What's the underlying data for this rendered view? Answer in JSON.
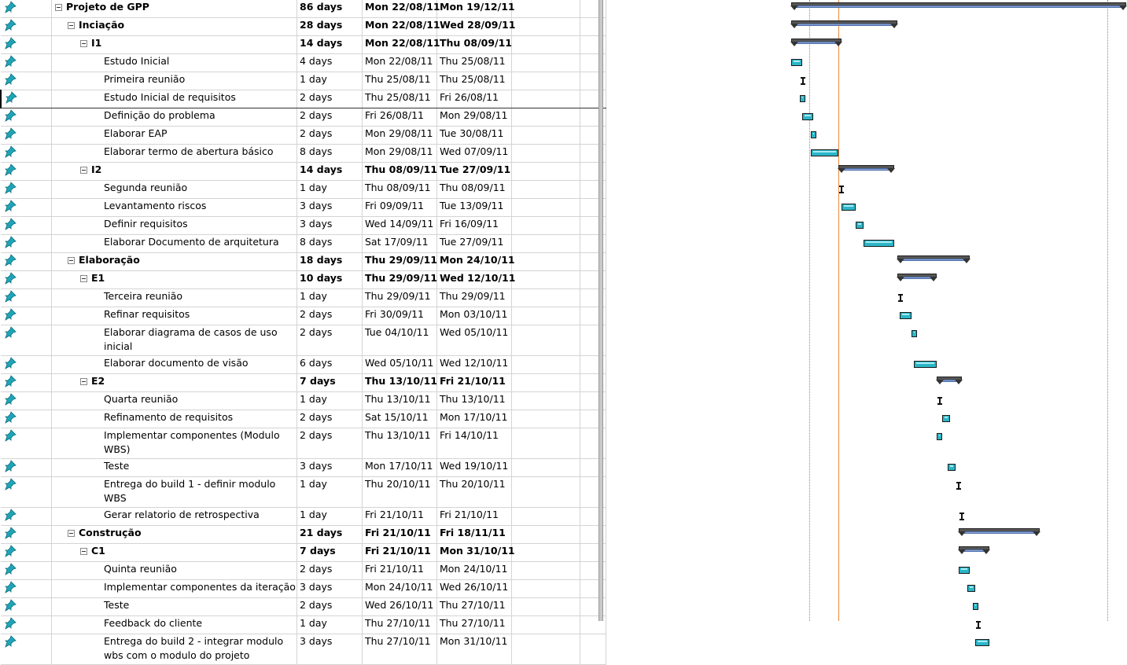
{
  "tasks": [
    {
      "name": "Projeto de GPP",
      "duration": "86 days",
      "start": "Mon 22/08/11",
      "finish": "Mon 19/12/11",
      "level": 0,
      "summary": true
    },
    {
      "name": "Inciação",
      "duration": "28 days",
      "start": "Mon 22/08/11",
      "finish": "Wed 28/09/11",
      "level": 1,
      "summary": true
    },
    {
      "name": "I1",
      "duration": "14 days",
      "start": "Mon 22/08/11",
      "finish": "Thu 08/09/11",
      "level": 2,
      "summary": true
    },
    {
      "name": "Estudo Inicial",
      "duration": "4 days",
      "start": "Mon 22/08/11",
      "finish": "Thu 25/08/11",
      "level": 3,
      "summary": false
    },
    {
      "name": "Primeira reunião",
      "duration": "1 day",
      "start": "Thu 25/08/11",
      "finish": "Thu 25/08/11",
      "level": 3,
      "summary": false
    },
    {
      "name": "Estudo Inicial de requisitos",
      "duration": "2 days",
      "start": "Thu 25/08/11",
      "finish": "Fri 26/08/11",
      "level": 3,
      "summary": false,
      "selected": true
    },
    {
      "name": "Definição do problema",
      "duration": "2 days",
      "start": "Fri 26/08/11",
      "finish": "Mon 29/08/11",
      "level": 3,
      "summary": false
    },
    {
      "name": "Elaborar EAP",
      "duration": "2 days",
      "start": "Mon 29/08/11",
      "finish": "Tue 30/08/11",
      "level": 3,
      "summary": false
    },
    {
      "name": "Elaborar termo de abertura básico",
      "duration": "8 days",
      "start": "Mon 29/08/11",
      "finish": "Wed 07/09/11",
      "level": 3,
      "summary": false
    },
    {
      "name": "I2",
      "duration": "14 days",
      "start": "Thu 08/09/11",
      "finish": "Tue 27/09/11",
      "level": 2,
      "summary": true
    },
    {
      "name": "Segunda reunião",
      "duration": "1 day",
      "start": "Thu 08/09/11",
      "finish": "Thu 08/09/11",
      "level": 3,
      "summary": false
    },
    {
      "name": "Levantamento riscos",
      "duration": "3 days",
      "start": "Fri 09/09/11",
      "finish": "Tue 13/09/11",
      "level": 3,
      "summary": false
    },
    {
      "name": "Definir requisitos",
      "duration": "3 days",
      "start": "Wed 14/09/11",
      "finish": "Fri 16/09/11",
      "level": 3,
      "summary": false
    },
    {
      "name": "Elaborar Documento de arquitetura",
      "duration": "8 days",
      "start": "Sat 17/09/11",
      "finish": "Tue 27/09/11",
      "level": 3,
      "summary": false
    },
    {
      "name": "Elaboração",
      "duration": "18 days",
      "start": "Thu 29/09/11",
      "finish": "Mon 24/10/11",
      "level": 1,
      "summary": true
    },
    {
      "name": "E1",
      "duration": "10 days",
      "start": "Thu 29/09/11",
      "finish": "Wed 12/10/11",
      "level": 2,
      "summary": true
    },
    {
      "name": "Terceira reunião",
      "duration": "1 day",
      "start": "Thu 29/09/11",
      "finish": "Thu 29/09/11",
      "level": 3,
      "summary": false
    },
    {
      "name": "Refinar requisitos",
      "duration": "2 days",
      "start": "Fri 30/09/11",
      "finish": "Mon 03/10/11",
      "level": 3,
      "summary": false
    },
    {
      "name": "Elaborar diagrama de casos de uso inicial",
      "duration": "2 days",
      "start": "Tue 04/10/11",
      "finish": "Wed 05/10/11",
      "level": 3,
      "summary": false,
      "tall": true
    },
    {
      "name": "Elaborar documento de visão",
      "duration": "6 days",
      "start": "Wed 05/10/11",
      "finish": "Wed 12/10/11",
      "level": 3,
      "summary": false
    },
    {
      "name": "E2",
      "duration": "7 days",
      "start": "Thu 13/10/11",
      "finish": "Fri 21/10/11",
      "level": 2,
      "summary": true
    },
    {
      "name": "Quarta reunião",
      "duration": "1 day",
      "start": "Thu 13/10/11",
      "finish": "Thu 13/10/11",
      "level": 3,
      "summary": false
    },
    {
      "name": "Refinamento de requisitos",
      "duration": "2 days",
      "start": "Sat 15/10/11",
      "finish": "Mon 17/10/11",
      "level": 3,
      "summary": false
    },
    {
      "name": "Implementar componentes (Modulo WBS)",
      "duration": "2 days",
      "start": "Thu 13/10/11",
      "finish": "Fri 14/10/11",
      "level": 3,
      "summary": false,
      "tall": true
    },
    {
      "name": "Teste",
      "duration": "3 days",
      "start": "Mon 17/10/11",
      "finish": "Wed 19/10/11",
      "level": 3,
      "summary": false
    },
    {
      "name": "Entrega do build 1 - definir modulo WBS",
      "duration": "1 day",
      "start": "Thu 20/10/11",
      "finish": "Thu 20/10/11",
      "level": 3,
      "summary": false,
      "tall": true
    },
    {
      "name": "Gerar relatorio de retrospectiva",
      "duration": "1 day",
      "start": "Fri 21/10/11",
      "finish": "Fri 21/10/11",
      "level": 3,
      "summary": false
    },
    {
      "name": "Construção",
      "duration": "21 days",
      "start": "Fri 21/10/11",
      "finish": "Fri 18/11/11",
      "level": 1,
      "summary": true
    },
    {
      "name": "C1",
      "duration": "7 days",
      "start": "Fri 21/10/11",
      "finish": "Mon 31/10/11",
      "level": 2,
      "summary": true
    },
    {
      "name": "Quinta reunião",
      "duration": "2 days",
      "start": "Fri 21/10/11",
      "finish": "Mon 24/10/11",
      "level": 3,
      "summary": false
    },
    {
      "name": "Implementar componentes da iteração",
      "duration": "3 days",
      "start": "Mon 24/10/11",
      "finish": "Wed 26/10/11",
      "level": 3,
      "summary": false
    },
    {
      "name": "Teste",
      "duration": "2 days",
      "start": "Wed 26/10/11",
      "finish": "Thu 27/10/11",
      "level": 3,
      "summary": false
    },
    {
      "name": "Feedback do cliente",
      "duration": "1 day",
      "start": "Thu 27/10/11",
      "finish": "Thu 27/10/11",
      "level": 3,
      "summary": false
    },
    {
      "name": "Entrega do build 2 - integrar modulo wbs com o modulo do projeto",
      "duration": "3 days",
      "start": "Thu 27/10/11",
      "finish": "Mon 31/10/11",
      "level": 3,
      "summary": false,
      "tall": true
    }
  ],
  "colors": {
    "task_bar": "#2bb6c8",
    "summary_bar": "#555555",
    "today_line": "#e8883a",
    "pin_icon": "#1fa5b8"
  },
  "icons": {
    "indicator": "pushpin-icon",
    "collapse": "collapse-minus-icon"
  }
}
